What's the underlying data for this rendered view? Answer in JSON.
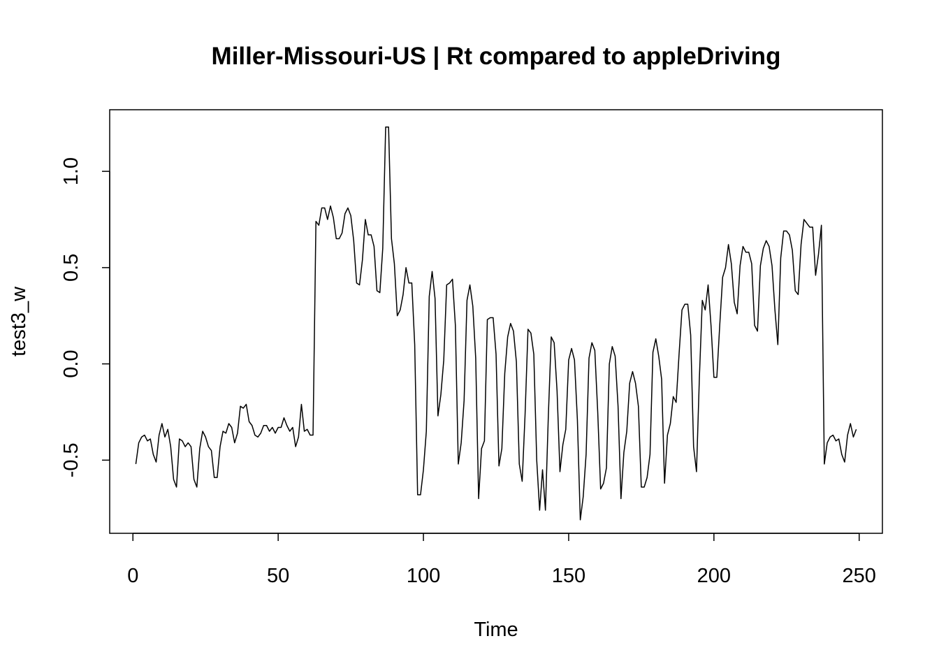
{
  "chart_data": {
    "type": "line",
    "title": "Miller-Missouri-US | Rt compared to appleDriving",
    "xlabel": "Time",
    "ylabel": "test3_w",
    "xlim": [
      -8,
      258
    ],
    "ylim": [
      -0.88,
      1.32
    ],
    "x_ticks": [
      0,
      50,
      100,
      150,
      200,
      250
    ],
    "x_tick_labels": [
      "0",
      "50",
      "100",
      "150",
      "200",
      "250"
    ],
    "y_ticks": [
      -0.5,
      0.0,
      0.5,
      1.0
    ],
    "y_tick_labels": [
      "-0.5",
      "0.0",
      "0.5",
      "1.0"
    ],
    "grid": false,
    "legend": "none",
    "line_color": "#000000",
    "series": [
      {
        "x_start": 1,
        "x_step": 1,
        "values": [
          -0.52,
          -0.41,
          -0.38,
          -0.37,
          -0.4,
          -0.39,
          -0.47,
          -0.51,
          -0.37,
          -0.31,
          -0.38,
          -0.34,
          -0.43,
          -0.6,
          -0.64,
          -0.39,
          -0.4,
          -0.43,
          -0.41,
          -0.43,
          -0.6,
          -0.64,
          -0.44,
          -0.35,
          -0.38,
          -0.43,
          -0.45,
          -0.59,
          -0.59,
          -0.43,
          -0.35,
          -0.36,
          -0.31,
          -0.33,
          -0.41,
          -0.36,
          -0.22,
          -0.23,
          -0.21,
          -0.3,
          -0.32,
          -0.37,
          -0.38,
          -0.36,
          -0.32,
          -0.32,
          -0.35,
          -0.33,
          -0.36,
          -0.33,
          -0.33,
          -0.28,
          -0.32,
          -0.35,
          -0.33,
          -0.43,
          -0.38,
          -0.21,
          -0.35,
          -0.34,
          -0.37,
          -0.37,
          0.74,
          0.72,
          0.81,
          0.81,
          0.75,
          0.82,
          0.76,
          0.65,
          0.65,
          0.68,
          0.78,
          0.81,
          0.77,
          0.64,
          0.42,
          0.41,
          0.54,
          0.75,
          0.67,
          0.67,
          0.61,
          0.38,
          0.37,
          0.6,
          1.23,
          1.23,
          0.65,
          0.52,
          0.25,
          0.28,
          0.36,
          0.5,
          0.42,
          0.42,
          0.1,
          -0.68,
          -0.68,
          -0.55,
          -0.35,
          0.35,
          0.48,
          0.34,
          -0.27,
          -0.16,
          0.02,
          0.41,
          0.42,
          0.44,
          0.2,
          -0.52,
          -0.41,
          -0.19,
          0.33,
          0.41,
          0.3,
          0.03,
          -0.7,
          -0.44,
          -0.4,
          0.23,
          0.24,
          0.24,
          0.05,
          -0.53,
          -0.44,
          -0.05,
          0.14,
          0.21,
          0.17,
          0.01,
          -0.52,
          -0.61,
          -0.26,
          0.18,
          0.16,
          0.05,
          -0.5,
          -0.76,
          -0.55,
          -0.76,
          -0.27,
          0.14,
          0.11,
          -0.14,
          -0.56,
          -0.42,
          -0.34,
          0.02,
          0.08,
          0.02,
          -0.29,
          -0.81,
          -0.69,
          -0.47,
          0.03,
          0.11,
          0.07,
          -0.25,
          -0.65,
          -0.62,
          -0.54,
          0.0,
          0.09,
          0.04,
          -0.22,
          -0.7,
          -0.46,
          -0.35,
          -0.1,
          -0.04,
          -0.1,
          -0.22,
          -0.64,
          -0.64,
          -0.59,
          -0.47,
          0.06,
          0.13,
          0.04,
          -0.08,
          -0.62,
          -0.37,
          -0.31,
          -0.17,
          -0.2,
          0.05,
          0.28,
          0.31,
          0.31,
          0.15,
          -0.43,
          -0.56,
          -0.07,
          0.33,
          0.28,
          0.41,
          0.2,
          -0.07,
          -0.07,
          0.2,
          0.45,
          0.5,
          0.62,
          0.52,
          0.32,
          0.26,
          0.51,
          0.61,
          0.58,
          0.58,
          0.52,
          0.2,
          0.17,
          0.51,
          0.6,
          0.64,
          0.61,
          0.51,
          0.28,
          0.1,
          0.55,
          0.69,
          0.69,
          0.67,
          0.59,
          0.38,
          0.36,
          0.62,
          0.75,
          0.73,
          0.71,
          0.71,
          0.46,
          0.57,
          0.72,
          -0.52,
          -0.41,
          -0.38,
          -0.37,
          -0.4,
          -0.39,
          -0.47,
          -0.51,
          -0.37,
          -0.31,
          -0.38,
          -0.34
        ]
      }
    ]
  }
}
